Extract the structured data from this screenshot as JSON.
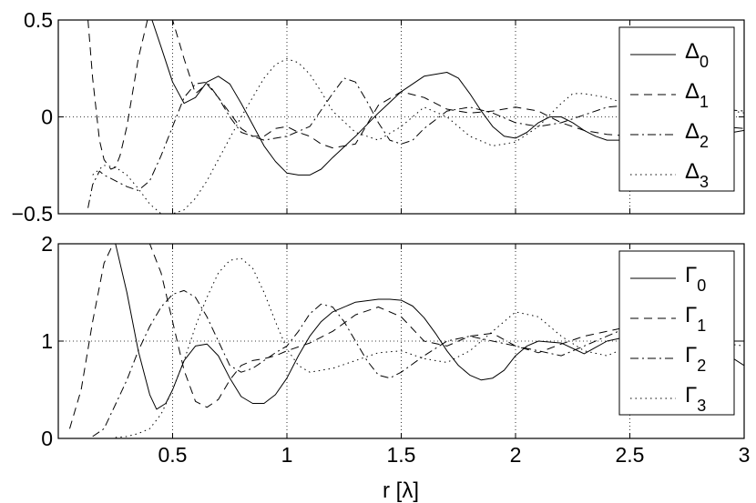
{
  "chart_data": [
    {
      "type": "line",
      "xlabel": "",
      "ylabel": "",
      "xlim": [
        0,
        3
      ],
      "ylim": [
        -0.5,
        0.5
      ],
      "xticks": [
        0.5,
        1,
        1.5,
        2,
        2.5,
        3
      ],
      "xtick_labels": [
        "",
        "",
        "",
        "",
        "",
        ""
      ],
      "yticks": [
        -0.5,
        0,
        0.5
      ],
      "ytick_labels": [
        "−0.5",
        "0",
        "0.5"
      ],
      "grid": true,
      "legend_position": "top-right",
      "series": [
        {
          "name": "Δ",
          "sub": "0",
          "dash": "solid",
          "x": [
            0.41,
            0.45,
            0.5,
            0.55,
            0.6,
            0.65,
            0.7,
            0.75,
            0.8,
            0.85,
            0.9,
            0.95,
            1.0,
            1.05,
            1.1,
            1.15,
            1.2,
            1.3,
            1.4,
            1.5,
            1.6,
            1.7,
            1.75,
            1.8,
            1.85,
            1.9,
            1.95,
            2.0,
            2.05,
            2.1,
            2.15,
            2.2,
            2.25,
            2.3,
            2.35,
            2.4,
            2.5,
            2.6,
            2.7,
            2.8,
            2.9,
            3.0
          ],
          "y": [
            0.5,
            0.36,
            0.18,
            0.07,
            0.1,
            0.18,
            0.21,
            0.17,
            0.07,
            -0.04,
            -0.15,
            -0.23,
            -0.29,
            -0.3,
            -0.3,
            -0.27,
            -0.21,
            -0.1,
            0.02,
            0.13,
            0.21,
            0.23,
            0.2,
            0.12,
            0.03,
            -0.05,
            -0.1,
            -0.11,
            -0.08,
            -0.03,
            0.0,
            0.0,
            -0.03,
            -0.07,
            -0.1,
            -0.12,
            -0.12,
            -0.08,
            -0.04,
            -0.06,
            -0.09,
            -0.07
          ]
        },
        {
          "name": "Δ",
          "sub": "1",
          "dash": "dashed",
          "x": [
            0.13,
            0.15,
            0.18,
            0.2,
            0.23,
            0.25,
            0.27,
            0.3,
            0.35,
            0.4,
            0.45,
            0.5,
            0.55,
            0.6,
            0.65,
            0.7,
            0.75,
            0.8,
            0.85,
            0.9,
            0.95,
            1.0,
            1.05,
            1.1,
            1.15,
            1.2,
            1.3,
            1.4,
            1.5,
            1.6,
            1.7,
            1.8,
            1.9,
            2.0,
            2.1,
            2.2,
            2.3,
            2.4,
            2.5,
            2.6,
            2.7,
            2.8,
            2.9,
            3.0
          ],
          "y": [
            0.5,
            0.2,
            -0.12,
            -0.22,
            -0.27,
            -0.26,
            -0.2,
            -0.05,
            0.3,
            0.55,
            0.55,
            0.5,
            0.3,
            0.12,
            0.17,
            0.1,
            0.02,
            -0.06,
            -0.1,
            -0.1,
            -0.06,
            -0.05,
            -0.08,
            -0.1,
            -0.14,
            -0.16,
            -0.14,
            0.06,
            0.13,
            0.1,
            0.04,
            0.02,
            0.03,
            0.05,
            0.03,
            -0.03,
            -0.07,
            -0.09,
            -0.1,
            -0.05,
            0.0,
            0.0,
            -0.05,
            -0.06
          ]
        },
        {
          "name": "Δ",
          "sub": "2",
          "dash": "dashdot",
          "x": [
            0.13,
            0.15,
            0.18,
            0.2,
            0.25,
            0.3,
            0.35,
            0.4,
            0.45,
            0.5,
            0.55,
            0.6,
            0.65,
            0.7,
            0.75,
            0.8,
            0.9,
            1.0,
            1.1,
            1.2,
            1.25,
            1.3,
            1.35,
            1.4,
            1.45,
            1.5,
            1.55,
            1.6,
            1.7,
            1.8,
            1.9,
            2.0,
            2.1,
            2.2,
            2.3,
            2.4,
            2.5,
            2.6,
            2.7,
            2.8,
            2.9,
            3.0
          ],
          "y": [
            -0.47,
            -0.35,
            -0.28,
            -0.3,
            -0.33,
            -0.36,
            -0.38,
            -0.33,
            -0.2,
            -0.05,
            0.1,
            0.17,
            0.18,
            0.1,
            0.0,
            -0.08,
            -0.12,
            -0.1,
            -0.05,
            0.12,
            0.2,
            0.18,
            0.08,
            -0.03,
            -0.12,
            -0.14,
            -0.12,
            -0.06,
            0.03,
            0.05,
            0.02,
            -0.03,
            -0.05,
            -0.03,
            0.01,
            0.05,
            0.06,
            0.04,
            0.02,
            0.03,
            0.04,
            0.03
          ]
        },
        {
          "name": "Δ",
          "sub": "3",
          "dash": "dotted",
          "x": [
            0.15,
            0.2,
            0.25,
            0.3,
            0.35,
            0.4,
            0.45,
            0.5,
            0.55,
            0.6,
            0.65,
            0.7,
            0.8,
            0.9,
            0.95,
            1.0,
            1.05,
            1.1,
            1.15,
            1.2,
            1.3,
            1.4,
            1.5,
            1.6,
            1.7,
            1.8,
            1.9,
            2.0,
            2.1,
            2.2,
            2.25,
            2.3,
            2.4,
            2.5,
            2.6,
            2.7,
            2.8,
            2.9,
            3.0
          ],
          "y": [
            -0.3,
            -0.25,
            -0.26,
            -0.3,
            -0.37,
            -0.45,
            -0.5,
            -0.5,
            -0.48,
            -0.42,
            -0.33,
            -0.22,
            0.0,
            0.2,
            0.27,
            0.3,
            0.28,
            0.22,
            0.13,
            0.03,
            -0.08,
            -0.12,
            -0.05,
            0.05,
            0.0,
            -0.1,
            -0.15,
            -0.13,
            -0.05,
            0.07,
            0.12,
            0.12,
            0.1,
            0.06,
            0.03,
            0.04,
            0.06,
            0.04,
            0.02
          ]
        }
      ]
    },
    {
      "type": "line",
      "xlabel": "r  [λ]",
      "ylabel": "",
      "xlim": [
        0,
        3
      ],
      "ylim": [
        0,
        2
      ],
      "xticks": [
        0.5,
        1,
        1.5,
        2,
        2.5,
        3
      ],
      "xtick_labels": [
        "0.5",
        "1",
        "1.5",
        "2",
        "2.5",
        "3"
      ],
      "yticks": [
        0,
        1,
        2
      ],
      "ytick_labels": [
        "0",
        "1",
        "2"
      ],
      "grid": true,
      "legend_position": "top-right",
      "series": [
        {
          "name": "Γ",
          "sub": "0",
          "dash": "solid",
          "x": [
            0.25,
            0.3,
            0.35,
            0.4,
            0.43,
            0.47,
            0.5,
            0.55,
            0.6,
            0.65,
            0.7,
            0.75,
            0.8,
            0.85,
            0.9,
            0.95,
            1.0,
            1.05,
            1.1,
            1.15,
            1.2,
            1.3,
            1.4,
            1.45,
            1.5,
            1.55,
            1.6,
            1.65,
            1.7,
            1.75,
            1.8,
            1.85,
            1.9,
            1.95,
            2.0,
            2.05,
            2.1,
            2.2,
            2.3,
            2.4,
            2.5,
            2.6,
            2.7,
            2.8,
            2.9,
            3.0
          ],
          "y": [
            2.0,
            1.5,
            0.9,
            0.45,
            0.3,
            0.36,
            0.5,
            0.8,
            0.95,
            0.97,
            0.85,
            0.62,
            0.43,
            0.36,
            0.36,
            0.45,
            0.62,
            0.85,
            1.05,
            1.2,
            1.3,
            1.4,
            1.43,
            1.43,
            1.42,
            1.36,
            1.24,
            1.08,
            0.9,
            0.75,
            0.65,
            0.6,
            0.62,
            0.7,
            0.85,
            0.95,
            1.0,
            0.98,
            0.87,
            1.0,
            1.05,
            0.92,
            1.05,
            1.15,
            0.9,
            0.75
          ]
        },
        {
          "name": "Γ",
          "sub": "1",
          "dash": "dashed",
          "x": [
            0.05,
            0.1,
            0.15,
            0.2,
            0.25,
            0.3,
            0.35,
            0.4,
            0.45,
            0.5,
            0.55,
            0.6,
            0.65,
            0.7,
            0.75,
            0.8,
            0.85,
            0.9,
            0.95,
            1.0,
            1.1,
            1.2,
            1.3,
            1.4,
            1.5,
            1.6,
            1.7,
            1.8,
            1.9,
            2.0,
            2.1,
            2.2,
            2.3,
            2.4,
            2.5,
            2.6,
            2.7,
            2.8,
            2.9,
            3.0
          ],
          "y": [
            0.1,
            0.5,
            1.2,
            1.8,
            2.05,
            2.1,
            2.08,
            2.0,
            1.7,
            1.2,
            0.7,
            0.38,
            0.32,
            0.4,
            0.6,
            0.75,
            0.8,
            0.82,
            0.85,
            0.9,
            0.98,
            1.1,
            1.27,
            1.35,
            1.25,
            1.0,
            0.95,
            1.05,
            1.08,
            0.95,
            0.88,
            0.97,
            1.05,
            1.1,
            1.15,
            1.1,
            1.05,
            1.0,
            1.0,
            1.0
          ]
        },
        {
          "name": "Γ",
          "sub": "2",
          "dash": "dashdot",
          "x": [
            0.15,
            0.2,
            0.25,
            0.3,
            0.35,
            0.4,
            0.45,
            0.5,
            0.55,
            0.6,
            0.65,
            0.7,
            0.75,
            0.8,
            0.85,
            0.9,
            0.95,
            1.0,
            1.05,
            1.1,
            1.15,
            1.2,
            1.25,
            1.3,
            1.35,
            1.4,
            1.45,
            1.5,
            1.6,
            1.7,
            1.8,
            1.9,
            2.0,
            2.1,
            2.2,
            2.3,
            2.4,
            2.5,
            2.6,
            2.7,
            2.8,
            2.9,
            3.0
          ],
          "y": [
            0.02,
            0.1,
            0.35,
            0.6,
            0.9,
            1.15,
            1.35,
            1.48,
            1.52,
            1.45,
            1.25,
            1.0,
            0.75,
            0.68,
            0.72,
            0.8,
            0.88,
            0.95,
            1.1,
            1.28,
            1.38,
            1.35,
            1.2,
            1.0,
            0.8,
            0.65,
            0.62,
            0.68,
            0.85,
            1.0,
            1.05,
            1.0,
            0.95,
            0.9,
            0.85,
            0.95,
            1.05,
            1.15,
            1.05,
            1.0,
            0.97,
            1.0,
            1.0
          ]
        },
        {
          "name": "Γ",
          "sub": "3",
          "dash": "dotted",
          "x": [
            0.25,
            0.3,
            0.35,
            0.4,
            0.45,
            0.5,
            0.55,
            0.6,
            0.65,
            0.7,
            0.75,
            0.8,
            0.85,
            0.9,
            0.95,
            1.0,
            1.05,
            1.1,
            1.2,
            1.3,
            1.4,
            1.5,
            1.6,
            1.7,
            1.8,
            1.9,
            2.0,
            2.1,
            2.2,
            2.3,
            2.4,
            2.5,
            2.6,
            2.7,
            2.8,
            2.9,
            3.0
          ],
          "y": [
            0.01,
            0.02,
            0.05,
            0.1,
            0.25,
            0.5,
            0.8,
            1.15,
            1.45,
            1.7,
            1.83,
            1.85,
            1.75,
            1.5,
            1.2,
            0.92,
            0.75,
            0.68,
            0.72,
            0.8,
            0.88,
            0.9,
            0.82,
            0.78,
            0.9,
            1.1,
            1.3,
            1.25,
            1.05,
            0.9,
            0.85,
            0.95,
            1.05,
            1.1,
            1.05,
            0.98,
            0.95
          ]
        }
      ]
    }
  ]
}
